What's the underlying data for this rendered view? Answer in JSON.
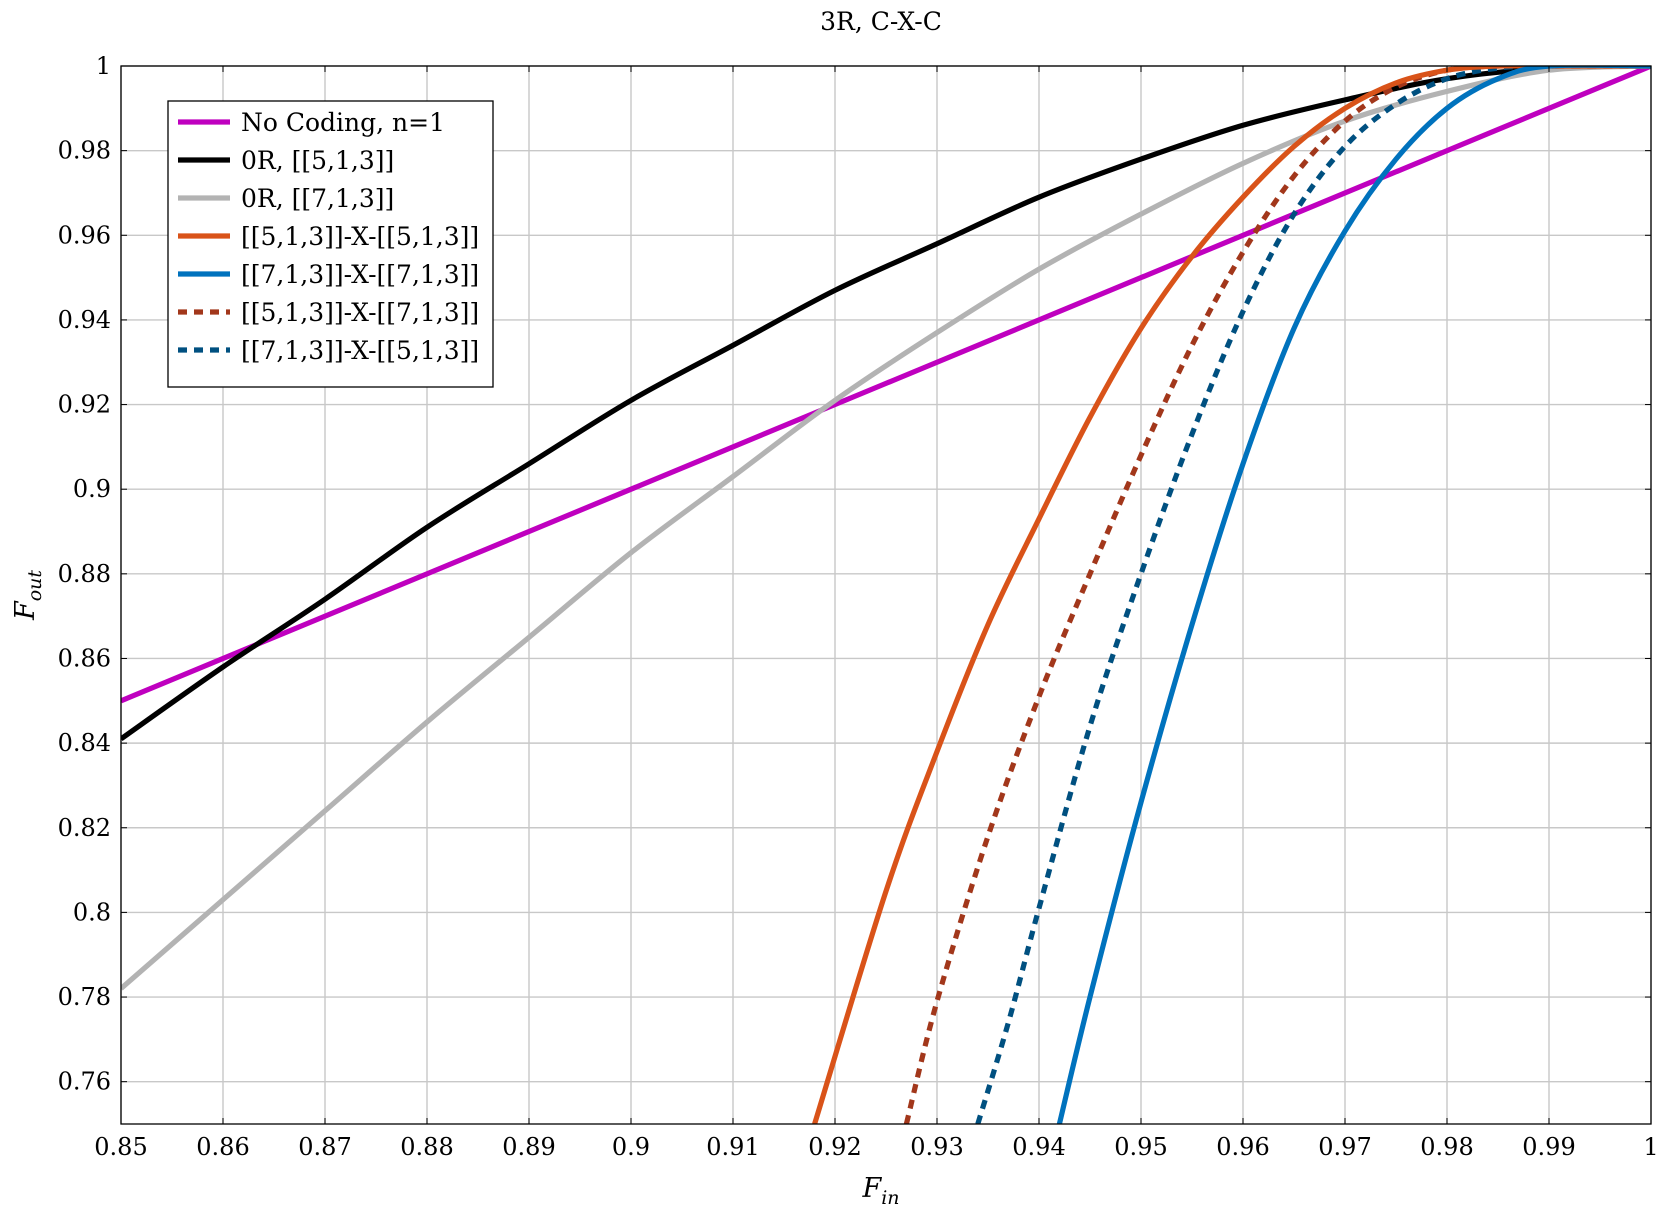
{
  "chart_data": {
    "type": "line",
    "title": "3R, C-X-C",
    "xlabel": {
      "main": "F",
      "sub": "in"
    },
    "ylabel": {
      "main": "F",
      "sub": "out"
    },
    "xlim": [
      0.85,
      1.0
    ],
    "ylim": [
      0.75,
      1.0
    ],
    "grid": true,
    "legend_position": "top-left",
    "x_ticks": [
      "0.85",
      "0.86",
      "0.87",
      "0.88",
      "0.89",
      "0.9",
      "0.91",
      "0.92",
      "0.93",
      "0.94",
      "0.95",
      "0.96",
      "0.97",
      "0.98",
      "0.99",
      "1"
    ],
    "y_ticks": [
      "0.76",
      "0.78",
      "0.8",
      "0.82",
      "0.84",
      "0.86",
      "0.88",
      "0.9",
      "0.92",
      "0.94",
      "0.96",
      "0.98",
      "1"
    ],
    "series": [
      {
        "name": "No Coding, n=1",
        "color": "#bf00bf",
        "dash": false,
        "x": [
          0.85,
          1.0
        ],
        "y": [
          0.85,
          1.0
        ]
      },
      {
        "name": "0R, [[5,1,3]]",
        "color": "#000000",
        "dash": false,
        "x": [
          0.85,
          0.86,
          0.87,
          0.88,
          0.89,
          0.9,
          0.91,
          0.92,
          0.93,
          0.94,
          0.95,
          0.96,
          0.97,
          0.98,
          0.99,
          1.0
        ],
        "y": [
          0.841,
          0.858,
          0.874,
          0.891,
          0.906,
          0.921,
          0.934,
          0.947,
          0.958,
          0.969,
          0.978,
          0.986,
          0.992,
          0.997,
          0.9995,
          1.0
        ]
      },
      {
        "name": "0R, [[7,1,3]]",
        "color": "#b3b3b3",
        "dash": false,
        "x": [
          0.85,
          0.86,
          0.87,
          0.88,
          0.89,
          0.9,
          0.91,
          0.92,
          0.93,
          0.94,
          0.95,
          0.96,
          0.97,
          0.98,
          0.99,
          1.0
        ],
        "y": [
          0.782,
          0.803,
          0.824,
          0.845,
          0.865,
          0.885,
          0.903,
          0.921,
          0.937,
          0.952,
          0.965,
          0.977,
          0.987,
          0.994,
          0.999,
          1.0
        ]
      },
      {
        "name": "[[5,1,3]]-X-[[5,1,3]]",
        "color": "#d95319",
        "dash": false,
        "x": [
          0.918,
          0.925,
          0.93,
          0.935,
          0.94,
          0.945,
          0.95,
          0.955,
          0.96,
          0.965,
          0.97,
          0.975,
          0.98,
          0.985,
          0.99,
          1.0
        ],
        "y": [
          0.75,
          0.805,
          0.838,
          0.868,
          0.893,
          0.917,
          0.938,
          0.955,
          0.969,
          0.981,
          0.99,
          0.996,
          0.999,
          1.0,
          1.0,
          1.0
        ]
      },
      {
        "name": "[[7,1,3]]-X-[[7,1,3]]",
        "color": "#0072bd",
        "dash": false,
        "x": [
          0.942,
          0.945,
          0.95,
          0.955,
          0.96,
          0.965,
          0.97,
          0.975,
          0.98,
          0.985,
          0.99,
          1.0
        ],
        "y": [
          0.75,
          0.78,
          0.826,
          0.868,
          0.906,
          0.938,
          0.961,
          0.978,
          0.99,
          0.997,
          1.0,
          1.0
        ]
      },
      {
        "name": "[[5,1,3]]-X-[[7,1,3]]",
        "color": "#a2371b",
        "dash": true,
        "x": [
          0.927,
          0.93,
          0.935,
          0.94,
          0.945,
          0.95,
          0.955,
          0.96,
          0.965,
          0.97,
          0.975,
          0.98,
          0.985,
          0.99,
          1.0
        ],
        "y": [
          0.75,
          0.779,
          0.818,
          0.851,
          0.88,
          0.908,
          0.934,
          0.956,
          0.974,
          0.987,
          0.995,
          0.999,
          1.0,
          1.0,
          1.0
        ]
      },
      {
        "name": "[[7,1,3]]-X-[[5,1,3]]",
        "color": "#005080",
        "dash": true,
        "x": [
          0.934,
          0.937,
          0.94,
          0.945,
          0.95,
          0.955,
          0.96,
          0.965,
          0.97,
          0.975,
          0.98,
          0.985,
          0.99,
          1.0
        ],
        "y": [
          0.75,
          0.774,
          0.801,
          0.844,
          0.88,
          0.913,
          0.942,
          0.965,
          0.981,
          0.991,
          0.997,
          0.9995,
          1.0,
          1.0
        ]
      }
    ]
  }
}
